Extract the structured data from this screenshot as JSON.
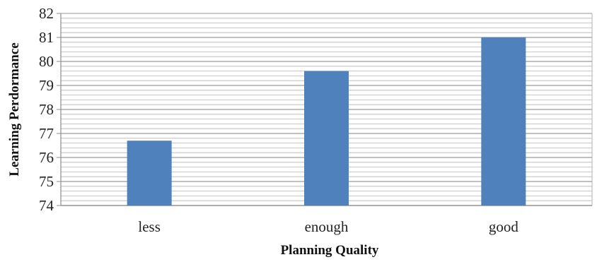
{
  "chart_data": {
    "type": "bar",
    "categories": [
      "less",
      "enough",
      "good"
    ],
    "values": [
      76.7,
      79.6,
      81.0
    ],
    "xlabel": "Planning Quality",
    "ylabel": "Learning Perdormance",
    "ylim": [
      74,
      82
    ],
    "yticks": [
      74,
      75,
      76,
      77,
      78,
      79,
      80,
      81,
      82
    ],
    "minor_gridlines_per_unit": 5,
    "grid": true,
    "legend": "none",
    "bar_color": "#4f81bd",
    "grid_color": "#b5b5b5"
  }
}
